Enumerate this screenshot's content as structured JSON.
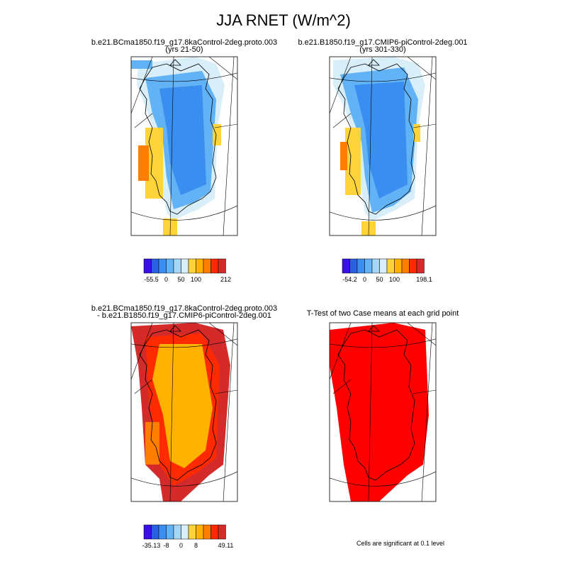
{
  "title": "JJA RNET (W/m^2)",
  "colorbar_colors": [
    "#3a10e8",
    "#2860e0",
    "#3a8ef0",
    "#62b2f6",
    "#a6d6f5",
    "#d8eef8",
    "#ffd43a",
    "#ffb200",
    "#ff7e00",
    "#ff2a00",
    "#d42a2a"
  ],
  "panels": [
    {
      "title": [
        "b.e21.BCma1850.f19_g17.8kaControl-2deg.proto.003",
        "(yrs 21-50)"
      ],
      "colorbar_labels": [
        "-55.5",
        "0",
        "50",
        "100",
        "212"
      ]
    },
    {
      "title": [
        "b.e21.B1850.f19_g17.CMIP6-piControl-2deg.001",
        "(yrs 301-330)"
      ],
      "colorbar_labels": [
        "-54.2",
        "0",
        "50",
        "100",
        "198.1"
      ]
    },
    {
      "title": [
        "b.e21.BCma1850.f19_g17.8kaControl-2deg.proto.003",
        "- b.e21.B1850.f19_g17.CMIP6-piControl-2deg.001"
      ],
      "colorbar_labels": [
        "-35.13",
        "-8",
        "0",
        "8",
        "49.11"
      ]
    },
    {
      "title": [
        "T-Test of two Case means at each grid point"
      ],
      "footnote": "Cells are significant at 0.1 level"
    }
  ]
}
